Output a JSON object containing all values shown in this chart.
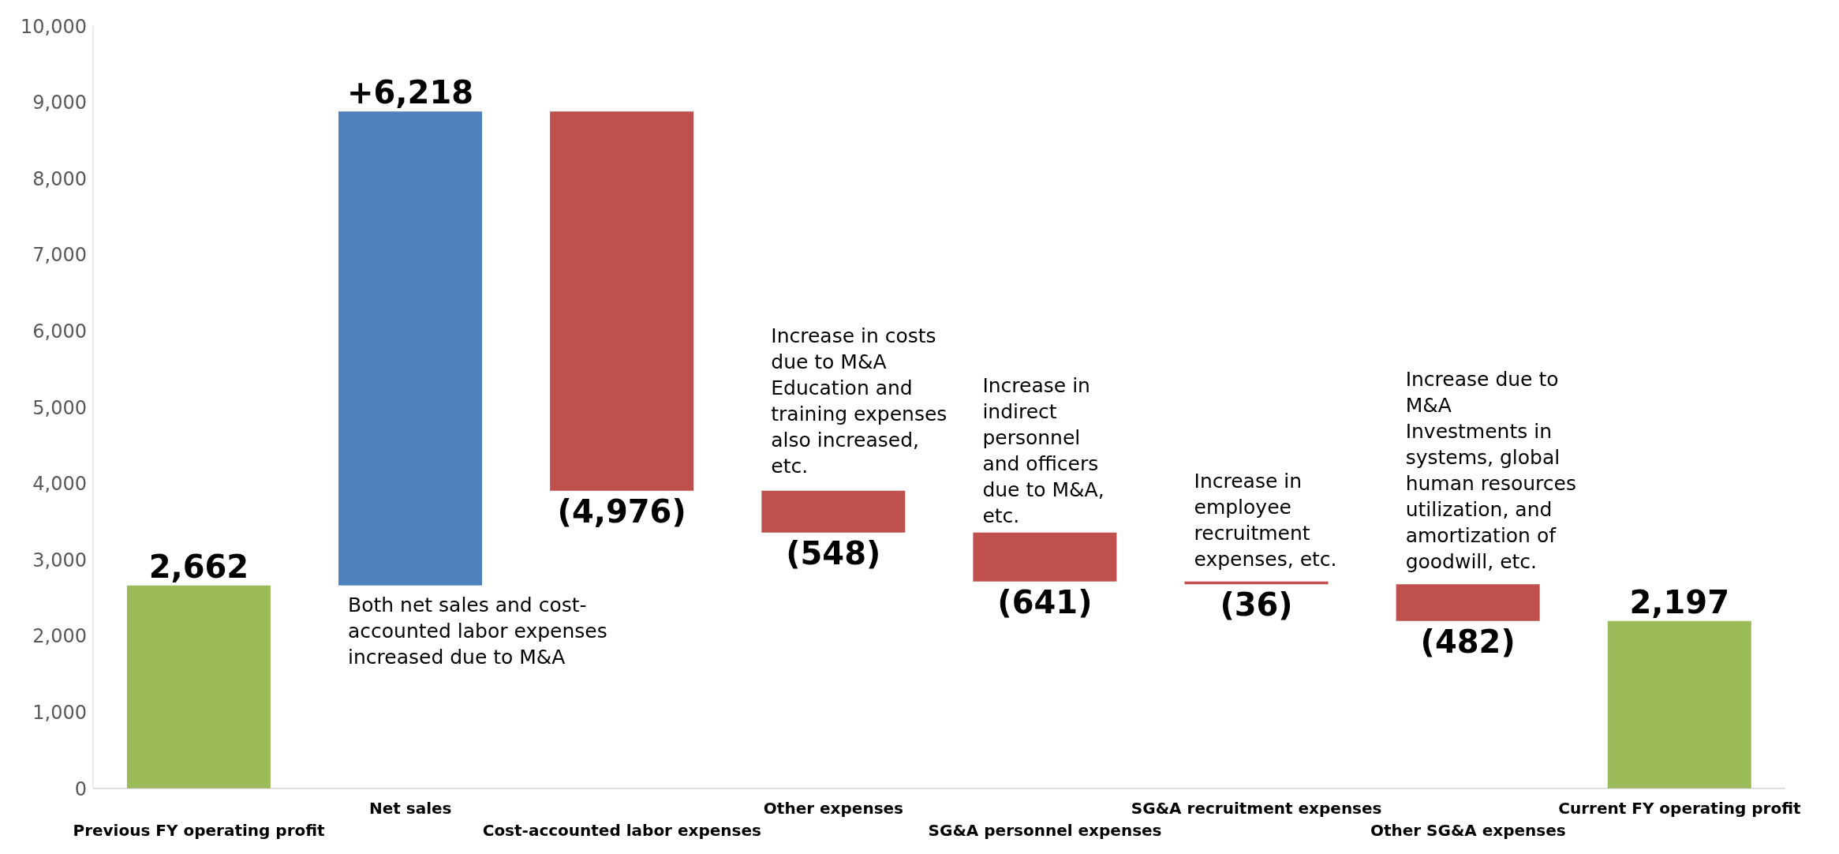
{
  "chart_data": {
    "type": "bar",
    "categories": [
      "Previous FY operating profit",
      "Net sales",
      "Cost-accounted labor expenses",
      "Other expenses",
      "SG&A personnel expenses",
      "SG&A recruitment expenses",
      "Other SG&A expenses",
      "Current FY operating profit"
    ],
    "values": [
      2662,
      6218,
      -4976,
      -548,
      -641,
      -36,
      -482,
      2197
    ],
    "base": [
      0,
      2662,
      8880,
      3904,
      3356,
      2715,
      2679,
      0
    ],
    "colors": [
      "#9bbb59",
      "#4f81bd",
      "#c0504d",
      "#c0504d",
      "#c0504d",
      "#c0504d",
      "#c0504d",
      "#9bbb59"
    ],
    "value_labels": [
      "2,662",
      "+6,218",
      "(4,976)",
      "(548)",
      "(641)",
      "(36)",
      "(482)",
      "2,197"
    ],
    "ylim": [
      0,
      10000
    ],
    "yticks": [
      {
        "value": 0,
        "label": "0"
      },
      {
        "value": 1000,
        "label": "1,000"
      },
      {
        "value": 2000,
        "label": "2,000"
      },
      {
        "value": 3000,
        "label": "3,000"
      },
      {
        "value": 4000,
        "label": "4,000"
      },
      {
        "value": 5000,
        "label": "5,000"
      },
      {
        "value": 6000,
        "label": "6,000"
      },
      {
        "value": 7000,
        "label": "7,000"
      },
      {
        "value": 8000,
        "label": "8,000"
      },
      {
        "value": 9000,
        "label": "9,000"
      },
      {
        "value": 10000,
        "label": "10,000"
      }
    ],
    "grid": false,
    "legend": false,
    "annotations": [
      "Both net sales and cost-accounted labor expenses increased due to M&A",
      "Increase in costs due to M&A\nEducation and training expenses also increased, etc.",
      "Increase in indirect personnel and officers due to M&A, etc.",
      "Increase in employee recruitment expenses, etc.",
      "Increase due to M&A\nInvestments in systems, global human resources utilization, and amortization of goodwill, etc."
    ]
  }
}
